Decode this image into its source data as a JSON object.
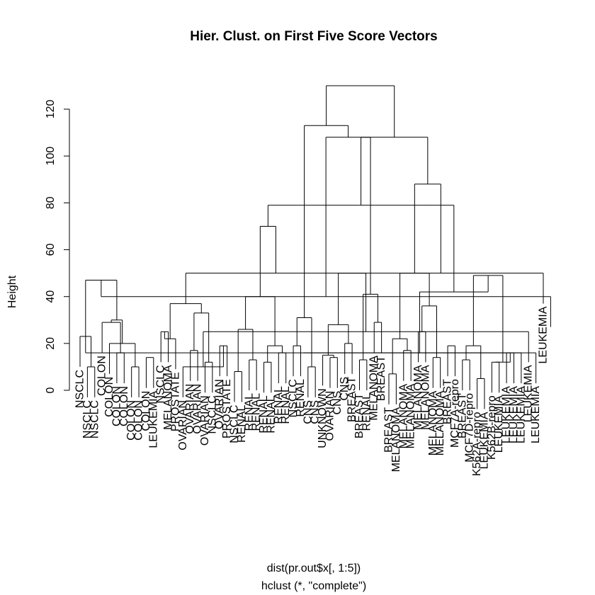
{
  "chart_data": {
    "type": "dendrogram",
    "title": "Hier. Clust. on First Five Score Vectors",
    "ylabel": "Height",
    "xlabel": "dist(pr.out$x[, 1:5])",
    "sub": "hclust (*, \"complete\")",
    "ylim": [
      0,
      130
    ],
    "yticks": [
      0,
      20,
      40,
      60,
      80,
      100,
      120
    ],
    "leaves": [
      "NSCLC",
      "NSCLC",
      "NSCLC",
      "COLON",
      "COLON",
      "COLON",
      "COLON",
      "COLON",
      "COLON",
      "COLON",
      "LEUKEMIA",
      "NSCLC",
      "MELANOMA",
      "PROSTATE",
      "OVARIAN",
      "OVARIAN",
      "OVARIAN",
      "OVARIAN",
      "NSCLC",
      "OVARIAN",
      "PROSTATE",
      "NSCLC",
      "RENAL",
      "RENAL",
      "RENAL",
      "RENAL",
      "RENAL",
      "RENAL",
      "RENAL",
      "NSCLC",
      "RENAL",
      "CNS",
      "CNS",
      "UNKNOWN",
      "OVARIAN",
      "CNS",
      "CNS",
      "BREAST",
      "BREAST",
      "RENAL",
      "MELANOMA",
      "BREAST",
      "BREAST",
      "MELANOMA",
      "MELANOMA",
      "MELANOMA",
      "MELANOMA",
      "MELANOMA",
      "MELANOMA",
      "MELANOMA",
      "BREAST",
      "MCF7A-repro",
      "BREAST",
      "MCF7D-repro",
      "K562A-repro",
      "LEUKEMIA",
      "K562B-repro",
      "LEUKEMIA",
      "LEUKEMIA",
      "LEUKEMIA",
      "LEUKEMIA",
      "LEUKEMIA",
      "LEUKEMIA",
      "LEUKEMIA"
    ],
    "merges": [
      [
        -2,
        -3,
        10
      ],
      [
        -6,
        -7,
        16
      ],
      [
        -8,
        -9,
        10
      ],
      [
        -10,
        -11,
        14
      ],
      [
        -12,
        -13,
        25
      ],
      [
        -16,
        -17,
        17
      ],
      [
        -18,
        -19,
        12
      ],
      [
        -20,
        -21,
        19
      ],
      [
        -22,
        -23,
        8
      ],
      [
        -24,
        -25,
        13
      ],
      [
        -26,
        -27,
        12
      ],
      [
        -28,
        -29,
        16
      ],
      [
        -30,
        -31,
        19
      ],
      [
        -32,
        -33,
        10
      ],
      [
        -35,
        -36,
        14
      ],
      [
        -37,
        -38,
        20
      ],
      [
        -39,
        -40,
        13
      ],
      [
        -41,
        -42,
        29
      ],
      [
        -43,
        -44,
        7
      ],
      [
        -45,
        -46,
        17
      ],
      [
        -47,
        -48,
        25
      ],
      [
        -49,
        -50,
        14
      ],
      [
        -51,
        -52,
        19
      ],
      [
        -53,
        -54,
        13
      ],
      [
        -55,
        -56,
        5
      ],
      [
        -57,
        -58,
        12
      ],
      [
        -59,
        -60,
        16
      ],
      [
        -1,
        1,
        23
      ],
      [
        -4,
        2,
        29
      ],
      [
        -5,
        3,
        20
      ],
      [
        5,
        -14,
        22
      ],
      [
        6,
        7,
        33
      ],
      [
        8,
        -15,
        10
      ],
      [
        -34,
        15,
        15
      ],
      [
        24,
        25,
        19
      ],
      [
        26,
        27,
        12
      ],
      [
        28,
        -61,
        16
      ],
      [
        9,
        10,
        26
      ],
      [
        11,
        12,
        19
      ],
      [
        33,
        -62,
        25
      ],
      [
        13,
        14,
        31
      ],
      [
        29,
        30,
        30
      ],
      [
        31,
        32,
        37
      ],
      [
        34,
        16,
        28
      ],
      [
        35,
        36,
        49
      ],
      [
        37,
        -63,
        16
      ],
      [
        19,
        20,
        22
      ],
      [
        21,
        22,
        36
      ],
      [
        42,
        28,
        47
      ],
      [
        18,
        17,
        41
      ],
      [
        38,
        39,
        40
      ],
      [
        43,
        40,
        50
      ],
      [
        44,
        -64,
        50
      ],
      [
        47,
        48,
        50
      ],
      [
        45,
        46,
        42
      ],
      [
        52,
        51,
        70
      ],
      [
        49,
        -65,
        40
      ],
      [
        54,
        53,
        88
      ],
      [
        56,
        55,
        79
      ],
      [
        57,
        50,
        108
      ],
      [
        58,
        59,
        108
      ],
      [
        60,
        41,
        113
      ],
      [
        61,
        62,
        130
      ]
    ]
  }
}
